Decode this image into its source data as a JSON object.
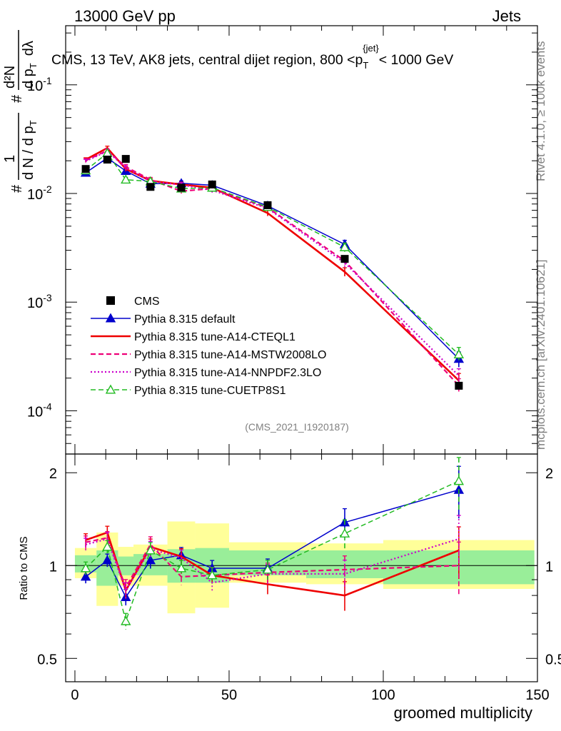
{
  "header": {
    "left": "13000 GeV pp",
    "right": "Jets"
  },
  "side": {
    "rivet": "Rivet 4.1.0, ≥ 100k events",
    "mcplots": "mcplots.cern.ch [arXiv:2401.10621]"
  },
  "colors": {
    "cms": "#000000",
    "default": "#0000cc",
    "cteql1": "#ee0000",
    "mstw": "#ee0077",
    "nnpdf": "#cc00cc",
    "cuetp8s1": "#22bb22",
    "band_inner": "#99ee99",
    "band_outer": "#ffff99"
  },
  "chart_data": [
    {
      "type": "line",
      "title": "CMS, 13 TeV, AK8 jets, central dijet region, 800 <p_T^{jet}< 1000 GeV",
      "title_parts": {
        "main": "CMS, 13 TeV, AK8 jets, central dijet region, 800 <p",
        "sub": "T",
        "sup": "{jet}",
        "tail": "< 1000 GeV"
      },
      "ylabel": "1/N dN/dp_T d²N/dp_T dλ",
      "ylabel_parts": {
        "hash": "#",
        "one": "1",
        "dn": "d N / d p",
        "sub": "T",
        "d2n": "d²N",
        "dp": "d p",
        "dl": "dλ"
      },
      "yscale": "log",
      "ylim": [
        4e-05,
        0.35
      ],
      "ytick_labels": [
        {
          "base": "10",
          "exp": "-1"
        },
        {
          "base": "10",
          "exp": "-2"
        },
        {
          "base": "10",
          "exp": "-3"
        },
        {
          "base": "10",
          "exp": "-4"
        }
      ],
      "ytick_values": [
        0.1,
        0.01,
        0.001,
        0.0001
      ],
      "xlim": [
        -3,
        150
      ],
      "x": [
        3.5,
        10.5,
        16.5,
        24.5,
        34.5,
        44.5,
        62.5,
        87.5,
        124.5
      ],
      "x_edges": [
        0,
        7,
        14,
        19,
        30,
        39,
        50,
        75,
        100,
        149
      ],
      "annotation": "(CMS_2021_I1920187)",
      "legend_position": "lower-left",
      "series": [
        {
          "name": "CMS",
          "key": "cms",
          "style": "points",
          "values": [
            0.0168,
            0.0205,
            0.0208,
            0.0115,
            0.0113,
            0.0121,
            0.0078,
            0.0025,
            0.00017
          ]
        },
        {
          "name": "Pythia 8.315 default",
          "key": "default",
          "style": "line-tri",
          "values": [
            0.0155,
            0.0212,
            0.0161,
            0.0123,
            0.0124,
            0.0119,
            0.0077,
            0.0034,
            0.0003
          ]
        },
        {
          "name": "Pythia 8.315 tune-A14-CTEQL1",
          "key": "cteql1",
          "style": "line",
          "values": [
            0.0205,
            0.0262,
            0.0168,
            0.0131,
            0.0121,
            0.0113,
            0.0066,
            0.0019,
            0.00019
          ]
        },
        {
          "name": "Pythia 8.315 tune-A14-MSTW2008LO",
          "key": "mstw",
          "style": "dash",
          "values": [
            0.0201,
            0.0248,
            0.0176,
            0.0134,
            0.0105,
            0.0111,
            0.0074,
            0.0024,
            0.00017
          ]
        },
        {
          "name": "Pythia 8.315 tune-A14-NNPDF2.3LO",
          "key": "nnpdf",
          "style": "dot",
          "values": [
            0.0198,
            0.0245,
            0.0172,
            0.0129,
            0.012,
            0.0107,
            0.0073,
            0.0023,
            0.00021
          ]
        },
        {
          "name": "Pythia 8.315 tune-CUETP8S1",
          "key": "cuetp8s1",
          "style": "dash-tri",
          "values": [
            0.0163,
            0.0235,
            0.0134,
            0.0129,
            0.0111,
            0.0113,
            0.0075,
            0.0032,
            0.00033
          ]
        }
      ]
    },
    {
      "type": "line",
      "ylabel": "Ratio to CMS",
      "xlabel": "groomed multiplicity",
      "yscale": "log",
      "ylim": [
        0.42,
        2.3
      ],
      "ytick_labels": [
        "2",
        "1",
        "0.5"
      ],
      "ytick_values": [
        2,
        1,
        0.5
      ],
      "xtick_labels": [
        "0",
        "50",
        "100",
        "150"
      ],
      "xtick_values": [
        0,
        50,
        100,
        150
      ],
      "band_inner": [
        [
          0.95,
          1.08
        ],
        [
          0.86,
          1.12
        ],
        [
          0.93,
          1.07
        ],
        [
          0.93,
          1.09
        ],
        [
          0.88,
          1.13
        ],
        [
          0.88,
          1.14
        ],
        [
          0.93,
          1.12
        ],
        [
          0.91,
          1.12
        ],
        [
          0.87,
          1.12
        ]
      ],
      "band_outer": [
        [
          0.91,
          1.14
        ],
        [
          0.74,
          1.28
        ],
        [
          0.86,
          1.15
        ],
        [
          0.86,
          1.17
        ],
        [
          0.7,
          1.39
        ],
        [
          0.73,
          1.37
        ],
        [
          0.88,
          1.19
        ],
        [
          0.87,
          1.18
        ],
        [
          0.84,
          1.21
        ]
      ],
      "series": [
        {
          "name": "Pythia 8.315 default",
          "key": "default",
          "style": "line-tri",
          "values": [
            0.92,
            1.04,
            0.79,
            1.04,
            1.08,
            0.98,
            0.98,
            1.38,
            1.76
          ]
        },
        {
          "name": "Pythia 8.315 tune-A14-CTEQL1",
          "key": "cteql1",
          "style": "line",
          "values": [
            1.21,
            1.28,
            0.83,
            1.15,
            1.07,
            0.93,
            0.87,
            0.8,
            1.12
          ]
        },
        {
          "name": "Pythia 8.315 tune-A14-MSTW2008LO",
          "key": "mstw",
          "style": "dash",
          "values": [
            1.19,
            1.23,
            0.85,
            1.17,
            0.92,
            0.93,
            0.95,
            0.97,
            1.0
          ]
        },
        {
          "name": "Pythia 8.315 tune-A14-NNPDF2.3LO",
          "key": "nnpdf",
          "style": "dot",
          "values": [
            1.17,
            1.22,
            0.83,
            1.13,
            1.06,
            0.88,
            0.94,
            0.94,
            1.22
          ]
        },
        {
          "name": "Pythia 8.315 tune-CUETP8S1",
          "key": "cuetp8s1",
          "style": "dash-tri",
          "values": [
            0.98,
            1.15,
            0.66,
            1.12,
            0.98,
            0.93,
            0.97,
            1.27,
            1.88
          ]
        }
      ]
    }
  ]
}
